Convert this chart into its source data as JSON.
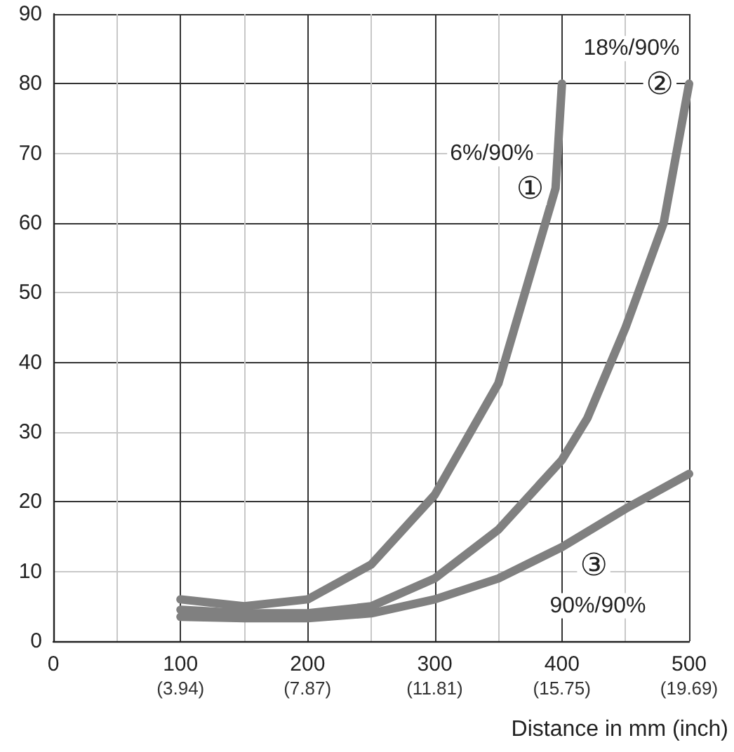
{
  "chart_data": {
    "type": "line",
    "xlabel": "Distance in mm (inch)",
    "xlim": [
      0,
      500
    ],
    "xticks": [
      0,
      100,
      200,
      300,
      400,
      500
    ],
    "x2lim": [
      0,
      19.69
    ],
    "x2ticks": [
      {
        "value": 3.94,
        "label": "(3.94)"
      },
      {
        "value": 7.87,
        "label": "(7.87)"
      },
      {
        "value": 11.81,
        "label": "(11.81)"
      },
      {
        "value": 15.75,
        "label": "(15.75)"
      },
      {
        "value": 19.69,
        "label": "(19.69)"
      }
    ],
    "ylim": [
      0,
      90
    ],
    "yticks": [
      0,
      10,
      20,
      30,
      40,
      50,
      60,
      70,
      80,
      90
    ],
    "grid": true,
    "marker": "none",
    "line_style": "solid",
    "series": [
      {
        "name": "6%/90%",
        "color": "#808080",
        "x": [
          100,
          150,
          200,
          250,
          300,
          350,
          395,
          400
        ],
        "values": [
          6,
          5,
          6,
          11,
          21,
          37,
          65,
          80
        ]
      },
      {
        "name": "18%/90%",
        "color": "#808080",
        "x": [
          100,
          150,
          200,
          250,
          300,
          350,
          400,
          420,
          450,
          480,
          500
        ],
        "values": [
          4.5,
          4,
          4,
          5,
          9,
          16,
          26,
          32,
          45,
          60,
          80
        ]
      },
      {
        "name": "90%/90%",
        "color": "#808080",
        "x": [
          100,
          150,
          200,
          250,
          300,
          350,
          400,
          450,
          500
        ],
        "values": [
          3.5,
          3.3,
          3.3,
          4,
          6,
          9,
          13.5,
          19,
          24
        ]
      }
    ],
    "annotations": [
      {
        "text": "①",
        "x": 375,
        "y": 65
      },
      {
        "text": "②",
        "x": 477,
        "y": 80
      },
      {
        "text": "③",
        "x": 425,
        "y": 11
      }
    ]
  }
}
